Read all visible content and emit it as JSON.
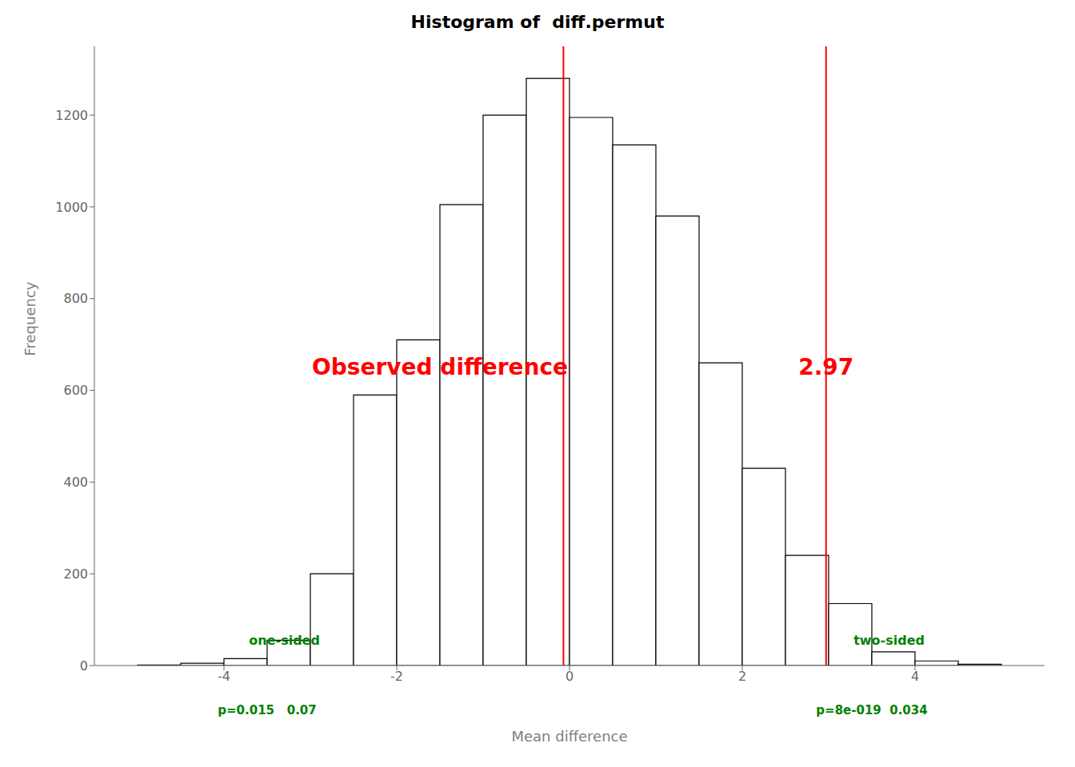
{
  "chart_data": {
    "type": "histogram",
    "title": "Histogram of  diff.permut",
    "xlabel": "Mean difference",
    "ylabel": "Frequency",
    "bins": [
      -5.5,
      -5.0,
      -4.5,
      -4.0,
      -3.5,
      -3.0,
      -2.5,
      -2.0,
      -1.5,
      -1.0,
      -0.5,
      0.0,
      0.5,
      1.0,
      1.5,
      2.0,
      2.5,
      3.0,
      3.5,
      4.0,
      4.5,
      5.0
    ],
    "counts": [
      0,
      1,
      5,
      15,
      55,
      200,
      590,
      710,
      1005,
      1200,
      1280,
      1195,
      1135,
      980,
      660,
      430,
      240,
      135,
      30,
      10,
      3
    ],
    "color": "white",
    "xlim": [
      -5.5,
      5.5
    ],
    "ylim": [
      0,
      1350
    ],
    "xticks": [
      -4,
      -2,
      0,
      2,
      4
    ],
    "yticks": [
      0,
      200,
      400,
      600,
      800,
      1000,
      1200
    ],
    "grid": false,
    "vlines": [
      {
        "x": -0.07,
        "color": "red"
      },
      {
        "x": 2.97,
        "color": "red"
      }
    ],
    "annotations": [
      {
        "text": "Observed difference",
        "x": -1.5,
        "y": 650,
        "color": "red"
      },
      {
        "text": "2.97",
        "x": 2.97,
        "y": 650,
        "color": "red"
      },
      {
        "text": "one-sided",
        "x": -3.3,
        "y": 55,
        "color": "green"
      },
      {
        "text": "two-sided",
        "x": 3.7,
        "y": 55,
        "color": "green"
      },
      {
        "text": "p=0.015   0.07",
        "x": -3.5,
        "y": -48,
        "color": "green"
      },
      {
        "text": "p=8e-019  0.034",
        "x": 3.5,
        "y": -48,
        "color": "green"
      }
    ]
  }
}
